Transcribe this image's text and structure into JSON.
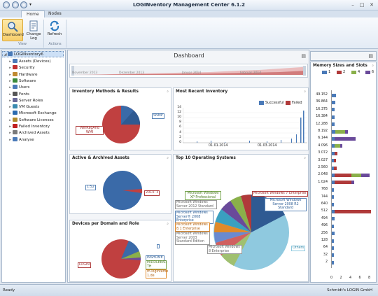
{
  "app": {
    "title": "LOGINventory Management Center 6.1.2"
  },
  "tabs": [
    {
      "label": "Home"
    },
    {
      "label": "Nodes"
    }
  ],
  "ribbon": {
    "dashboard": "Dashboard",
    "change_log": "Change Log",
    "refresh": "Refresh",
    "group_view": "View",
    "group_actions": "Actions"
  },
  "tree": {
    "root": "LOGINventory6",
    "items": [
      {
        "label": "Assets (Devices)",
        "color": "#4a7ab8"
      },
      {
        "label": "Security",
        "color": "#c03030"
      },
      {
        "label": "Hardware",
        "color": "#c08a30"
      },
      {
        "label": "Software",
        "color": "#3a8a3a"
      },
      {
        "label": "Users",
        "color": "#4a7ab8"
      },
      {
        "label": "Fonts",
        "color": "#555555"
      },
      {
        "label": "Server Roles",
        "color": "#6a6a9a"
      },
      {
        "label": "VM Guests",
        "color": "#3a8ab0"
      },
      {
        "label": "Microsoft Exchange",
        "color": "#2a6ab0"
      },
      {
        "label": "Software Licenses",
        "color": "#b08a2a"
      },
      {
        "label": "Failed Inventory",
        "color": "#c02020"
      },
      {
        "label": "Archived Assets",
        "color": "#7a7a7a"
      },
      {
        "label": "Analyse",
        "color": "#4a7ab8"
      }
    ]
  },
  "dashboard": {
    "title": "Dashboard",
    "timeline": {
      "labels": [
        "November 2013",
        "Dezember 2013",
        "Januar 2014",
        "Februar 2014"
      ]
    },
    "panels": {
      "methods": {
        "title": "Inventory Methods & Results",
        "labels": [
          "WinRagAnd WMI",
          "SNMP"
        ]
      },
      "recent": {
        "title": "Most Recent Inventory",
        "legend_ok": "Successful",
        "legend_fail": "Failed",
        "yticks": [
          "0",
          "2",
          "4",
          "6",
          "8",
          "10",
          "12",
          "14"
        ],
        "xticks": [
          "01.01.2014",
          "01.03.2014"
        ]
      },
      "archived": {
        "title": "Active & Archived Assets",
        "labels": [
          "1:52",
          "2014: 3"
        ]
      },
      "os": {
        "title": "Top 10 Operating Systems",
        "labels": [
          "Microsoft Windows XP Professional",
          "Microsoft Windows Server 2012 Standard",
          "Microsoft Windows Server® 2008 Enterprise",
          "Microsoft Windows 8.1 Enterprise",
          "Microsoft Windows Server 2003 Standard Edition",
          "Microsoft Windows 8 Enterprise",
          "Microsoft Windows 7 Enterprise",
          "Microsoft Windows Server 2008 R2 Standard",
          "Others"
        ]
      },
      "domain": {
        "title": "Devices per Domain and Role",
        "labels": [
          "LOGIN",
          "INSHOME",
          "MIDDLEEAR TH",
          "m.loginteme 1.de"
        ]
      }
    }
  },
  "memory": {
    "title": "Memory Sizes and Slots",
    "legend": [
      "1",
      "2",
      "4",
      "6"
    ],
    "legend_colors": [
      "#4a7ab8",
      "#b03a3a",
      "#8ab04a",
      "#6a4a9a"
    ],
    "sizes": [
      "49.152",
      "36.864",
      "16.375",
      "16.384",
      "12.288",
      "8.192",
      "6.144",
      "4.096",
      "3.072",
      "3.027",
      "2.560",
      "2.048",
      "1.024",
      "768",
      "744",
      "640",
      "512",
      "494",
      "496",
      "256",
      "128",
      "64",
      "32",
      "2"
    ],
    "xticks": [
      "0",
      "2",
      "4",
      "6",
      "8"
    ]
  },
  "statusbar": {
    "left": "Ready",
    "right": "Schmidt's LOGIN GmbH"
  }
}
